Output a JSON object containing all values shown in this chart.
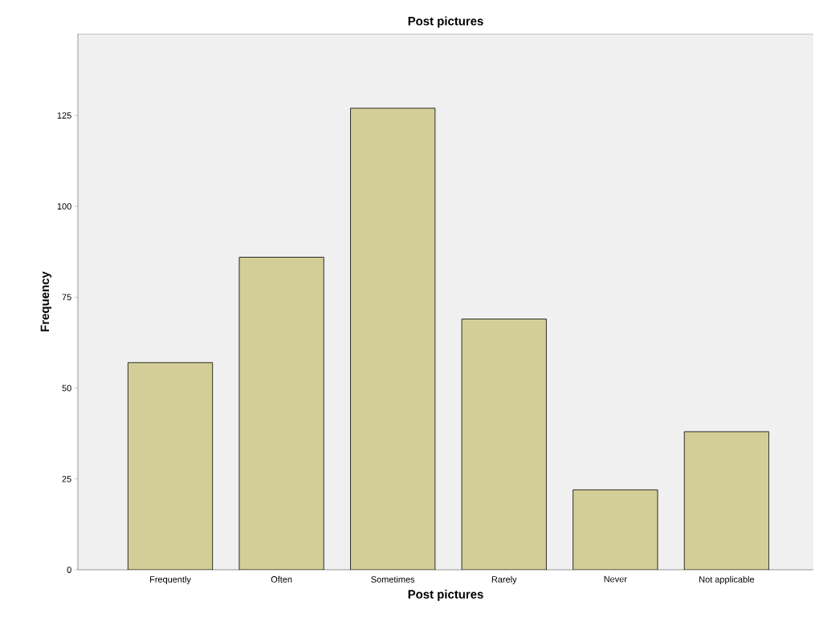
{
  "chart_data": {
    "type": "bar",
    "title": "Post pictures",
    "xlabel": "Post pictures",
    "ylabel": "Frequency",
    "categories": [
      "Frequently",
      "Often",
      "Sometimes",
      "Rarely",
      "Never",
      "Not applicable"
    ],
    "values": [
      57,
      86,
      127,
      69,
      22,
      38
    ],
    "color": "#d3ce97",
    "ylim": [
      0,
      147.5
    ],
    "yticks": [
      0,
      25,
      50,
      75,
      100,
      125
    ],
    "grid": false
  }
}
